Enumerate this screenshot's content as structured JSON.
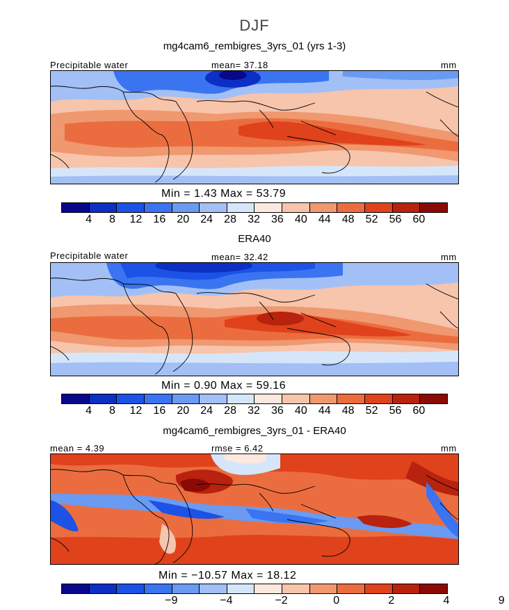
{
  "figure": {
    "season": "DJF"
  },
  "panels": [
    {
      "title": "mg4cam6_rembigres_3yrs_01 (yrs 1-3)",
      "left_label": "Precipitable water",
      "center_label": "mean=  37.18",
      "units": "mm",
      "minmax": "Min =    1.43 Max =   53.79",
      "colorbar_labels": [
        "4",
        "8",
        "12",
        "16",
        "20",
        "24",
        "28",
        "32",
        "36",
        "40",
        "44",
        "48",
        "52",
        "56",
        "60"
      ]
    },
    {
      "title": "ERA40",
      "left_label": "Precipitable water",
      "center_label": "mean=  32.42",
      "units": "mm",
      "minmax": "Min =    0.90 Max =   59.16",
      "colorbar_labels": [
        "4",
        "8",
        "12",
        "16",
        "20",
        "24",
        "28",
        "32",
        "36",
        "40",
        "44",
        "48",
        "52",
        "56",
        "60"
      ]
    },
    {
      "title": "mg4cam6_rembigres_3yrs_01 - ERA40",
      "left_label": "mean =    4.39",
      "center_label": "rmse =    6.42",
      "units": "mm",
      "minmax": "Min = −10.57 Max =  18.12",
      "colorbar_labels": [
        "−9",
        "−4",
        "−2",
        "0",
        "2",
        "4",
        "9"
      ]
    }
  ],
  "palette": [
    "#08088c",
    "#0c2fc4",
    "#1c52e6",
    "#3a74f0",
    "#6a9af2",
    "#a2c0f6",
    "#d6e6fa",
    "#fbe8de",
    "#f7c4ac",
    "#f0986f",
    "#eb6d3f",
    "#e0421c",
    "#b8220e",
    "#8b0a06"
  ]
}
